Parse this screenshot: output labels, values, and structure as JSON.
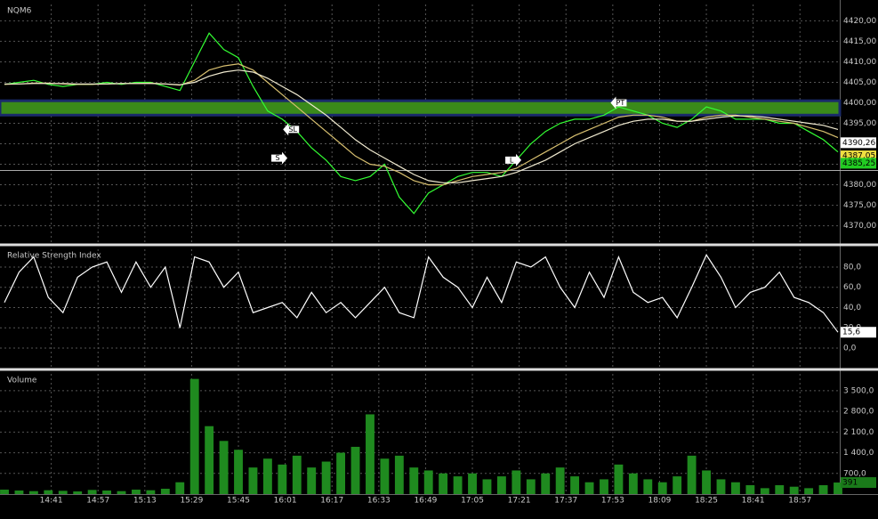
{
  "chart_data": [
    {
      "type": "line",
      "title": "NQM6",
      "x": [
        "14:25",
        "14:30",
        "14:35",
        "14:40",
        "14:45",
        "14:50",
        "14:55",
        "15:00",
        "15:05",
        "15:10",
        "15:15",
        "15:20",
        "15:25",
        "15:30",
        "15:35",
        "15:40",
        "15:45",
        "15:50",
        "15:55",
        "16:00",
        "16:05",
        "16:10",
        "16:15",
        "16:20",
        "16:25",
        "16:30",
        "16:35",
        "16:40",
        "16:45",
        "16:50",
        "16:55",
        "17:00",
        "17:05",
        "17:10",
        "17:15",
        "17:20",
        "17:25",
        "17:30",
        "17:35",
        "17:40",
        "17:45",
        "17:50",
        "17:55",
        "18:00",
        "18:05",
        "18:10",
        "18:15",
        "18:20",
        "18:25",
        "18:30",
        "18:35",
        "18:40",
        "18:45",
        "18:50",
        "18:55",
        "19:00",
        "19:05",
        "19:10"
      ],
      "xlim": [
        "14:25",
        "19:10"
      ],
      "xticks": [
        "14:41",
        "14:57",
        "15:13",
        "15:29",
        "15:45",
        "16:01",
        "16:17",
        "16:33",
        "16:49",
        "17:05",
        "17:21",
        "17:37",
        "17:53",
        "18:09",
        "18:25",
        "18:41",
        "18:57"
      ],
      "series": [
        {
          "color": "#33ff33",
          "values": [
            4404.5,
            4405,
            4405.5,
            4404.5,
            4404,
            4404.5,
            4404.5,
            4405,
            4404.5,
            4405,
            4405,
            4404,
            4403,
            4410,
            4417,
            4413,
            4411,
            4404,
            4398,
            4396,
            4393,
            4389,
            4386,
            4382,
            4381,
            4382,
            4385,
            4377,
            4373,
            4378,
            4380,
            4382,
            4383,
            4383,
            4382,
            4386,
            4390,
            4393,
            4395,
            4396,
            4396,
            4397,
            4399,
            4398,
            4397,
            4395,
            4394,
            4396,
            4399,
            4398,
            4396,
            4396,
            4396,
            4395,
            4395,
            4393,
            4391,
            4388
          ]
        },
        {
          "color": "#d8c070",
          "values": [
            4404.5,
            4404.6,
            4404.8,
            4404.8,
            4404.6,
            4404.5,
            4404.5,
            4404.6,
            4404.7,
            4404.7,
            4404.8,
            4404.6,
            4404.3,
            4405.5,
            4408,
            4409,
            4409.5,
            4408,
            4405,
            4402,
            4399,
            4396,
            4393,
            4390,
            4387,
            4385,
            4384.5,
            4383,
            4381,
            4380,
            4380,
            4381,
            4382,
            4382.5,
            4383,
            4384,
            4386,
            4388,
            4390,
            4392,
            4393.5,
            4395,
            4396.5,
            4397,
            4397,
            4396.5,
            4395.5,
            4395.5,
            4396.5,
            4397,
            4397,
            4396.5,
            4396,
            4395.5,
            4395,
            4394,
            4393,
            4391.5
          ]
        },
        {
          "color": "#f0ead0",
          "values": [
            4404.6,
            4404.6,
            4404.7,
            4404.7,
            4404.7,
            4404.6,
            4404.6,
            4404.6,
            4404.7,
            4404.7,
            4404.7,
            4404.6,
            4404.4,
            4405,
            4406.5,
            4407.5,
            4408,
            4407.5,
            4406,
            4404,
            4402,
            4399.5,
            4397,
            4394,
            4391,
            4388.5,
            4386.5,
            4384.5,
            4382.5,
            4381,
            4380.5,
            4380.5,
            4381,
            4381.5,
            4382,
            4383,
            4384.5,
            4386,
            4388,
            4390,
            4391.5,
            4393,
            4394.5,
            4395.5,
            4396,
            4396,
            4395.5,
            4395.5,
            4396,
            4396.5,
            4396.8,
            4396.8,
            4396.5,
            4396,
            4395.5,
            4395,
            4394.5,
            4393.5
          ]
        }
      ],
      "ylim": [
        4366,
        4424
      ],
      "yticks": [
        {
          "value": 4370,
          "label": "4370,00"
        },
        {
          "value": 4375,
          "label": "4375,00"
        },
        {
          "value": 4380,
          "label": "4380,00"
        },
        {
          "value": 4385,
          "label": "4385,00"
        },
        {
          "value": 4390,
          "label": "4390,00"
        },
        {
          "value": 4395,
          "label": "4395,00"
        },
        {
          "value": 4400,
          "label": "4400,00"
        },
        {
          "value": 4405,
          "label": "4405,00"
        },
        {
          "value": 4410,
          "label": "4410,00"
        },
        {
          "value": 4415,
          "label": "4415,00"
        },
        {
          "value": 4420,
          "label": "4420,00"
        }
      ],
      "band": [
        4397,
        4400.5
      ],
      "band_color": "#3a8a1a",
      "hline": 4383.5,
      "markers": [
        {
          "value": 4390.26,
          "label": "4390,26",
          "color": "#ffffff"
        },
        {
          "value": 4387.05,
          "label": "4387,05",
          "color": "#f0e040"
        },
        {
          "value": 4385.25,
          "label": "4385,25",
          "color": "#22cc22"
        }
      ],
      "annotations": [
        {
          "text": "S",
          "x": "15:59",
          "y": 4386.5,
          "dir": "right"
        },
        {
          "text": "SL",
          "x": "16:03",
          "y": 4393.5,
          "dir": "left"
        },
        {
          "text": "L",
          "x": "17:19",
          "y": 4386,
          "dir": "right"
        },
        {
          "text": "PT",
          "x": "17:55",
          "y": 4400,
          "dir": "left"
        }
      ]
    },
    {
      "type": "line",
      "title": "Relative Strength Index",
      "color": "#ffffff",
      "values": [
        45,
        75,
        90,
        50,
        35,
        70,
        80,
        85,
        55,
        85,
        60,
        80,
        20,
        90,
        85,
        60,
        75,
        35,
        40,
        45,
        30,
        55,
        35,
        45,
        30,
        45,
        60,
        35,
        30,
        90,
        70,
        60,
        40,
        70,
        45,
        85,
        80,
        90,
        60,
        40,
        75,
        50,
        90,
        55,
        45,
        50,
        30,
        60,
        92,
        70,
        40,
        55,
        60,
        75,
        50,
        45,
        35,
        15.6
      ],
      "ylim": [
        -18.5,
        97.6
      ],
      "yticks": [
        {
          "value": 0,
          "label": "0,0"
        },
        {
          "value": 20,
          "label": "20,0"
        },
        {
          "value": 40,
          "label": "40,0"
        },
        {
          "value": 60,
          "label": "60,0"
        },
        {
          "value": 80,
          "label": "80,0"
        }
      ],
      "markers": [
        {
          "value": 15.6,
          "label": "15,6",
          "color": "#ffffff"
        }
      ]
    },
    {
      "type": "bar",
      "title": "Volume",
      "color": "#1f8a1f",
      "values": [
        150,
        120,
        100,
        130,
        110,
        90,
        140,
        120,
        100,
        150,
        130,
        180,
        400,
        3900,
        2300,
        1800,
        1500,
        900,
        1200,
        1000,
        1300,
        900,
        1100,
        1400,
        1600,
        2700,
        1200,
        1300,
        900,
        800,
        700,
        600,
        700,
        500,
        600,
        800,
        500,
        700,
        900,
        600,
        400,
        500,
        1000,
        700,
        500,
        400,
        600,
        1300,
        800,
        500,
        400,
        300,
        200,
        300,
        250,
        200,
        300,
        391
      ],
      "ylim": [
        0,
        4070
      ],
      "yticks": [
        {
          "value": 700,
          "label": "700,0"
        },
        {
          "value": 1400,
          "label": "1 400,0"
        },
        {
          "value": 2100,
          "label": "2 100,0"
        },
        {
          "value": 2800,
          "label": "2 800,0"
        },
        {
          "value": 3500,
          "label": "3 500,0"
        }
      ],
      "markers": [
        {
          "value": 391,
          "label": "391",
          "color": "#1a7a1a"
        }
      ]
    }
  ]
}
